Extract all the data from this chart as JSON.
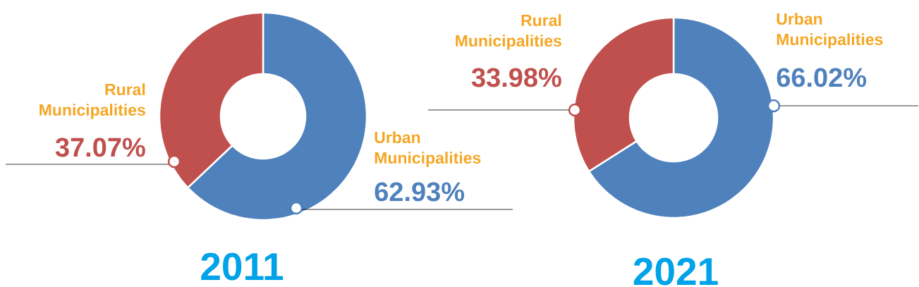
{
  "chart_data": [
    {
      "type": "donut",
      "title": "2011",
      "categories": [
        "Urban Municipalities",
        "Rural Municipalities"
      ],
      "values": [
        62.93,
        37.07
      ],
      "value_labels": [
        "62.93%",
        "37.07%"
      ],
      "colors": [
        "#4f81bd",
        "#c0504d"
      ]
    },
    {
      "type": "donut",
      "title": "2021",
      "categories": [
        "Urban Municipalities",
        "Rural Municipalities"
      ],
      "values": [
        66.02,
        33.98
      ],
      "value_labels": [
        "66.02%",
        "33.98%"
      ],
      "colors": [
        "#4f81bd",
        "#c0504d"
      ]
    }
  ]
}
